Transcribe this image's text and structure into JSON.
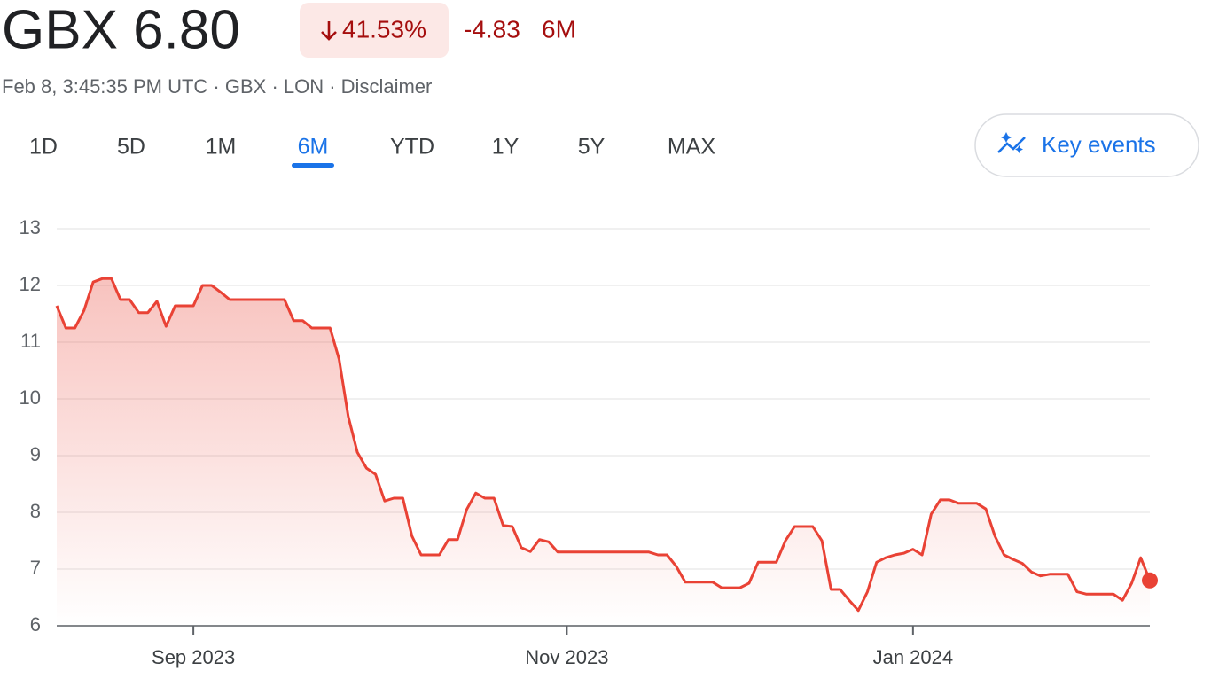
{
  "header": {
    "price": "GBX 6.80",
    "change_percent": "41.53%",
    "change": "-4.83",
    "period": "6M",
    "subtitle": "Feb 8, 3:45:35 PM UTC · GBX · LON · Disclaimer"
  },
  "tabs": [
    "1D",
    "5D",
    "1M",
    "6M",
    "YTD",
    "1Y",
    "5Y",
    "MAX"
  ],
  "selected_tab": "6M",
  "key_events": "Key events",
  "chart_data": {
    "type": "line",
    "categories": [
      null,
      null,
      null,
      null,
      null,
      null,
      null,
      null,
      null,
      null,
      null,
      null,
      null,
      null,
      null,
      "Sep 2023",
      null,
      null,
      null,
      null,
      null,
      null,
      null,
      null,
      null,
      null,
      null,
      null,
      null,
      null,
      null,
      null,
      null,
      null,
      null,
      null,
      null,
      null,
      null,
      null,
      null,
      null,
      null,
      null,
      null,
      null,
      null,
      null,
      null,
      null,
      null,
      null,
      null,
      null,
      null,
      null,
      "Nov 2023",
      null,
      null,
      null,
      null,
      null,
      null,
      null,
      null,
      null,
      null,
      null,
      null,
      null,
      null,
      null,
      null,
      null,
      null,
      null,
      null,
      null,
      null,
      null,
      null,
      null,
      null,
      null,
      null,
      null,
      null,
      null,
      null,
      null,
      null,
      null,
      null,
      null,
      "Jan 2024",
      null,
      null,
      null,
      null,
      null,
      null,
      null,
      null,
      null,
      null,
      null,
      null,
      null,
      null,
      null,
      null,
      null,
      null,
      null,
      null,
      null,
      null,
      null,
      null,
      null,
      null
    ],
    "series": [
      {
        "name": "GBX",
        "color": "#e94235",
        "values": [
          11.64,
          11.25,
          11.25,
          11.56,
          12.06,
          12.12,
          12.12,
          11.75,
          11.75,
          11.52,
          11.52,
          11.72,
          11.28,
          11.64,
          11.64,
          11.64,
          12.0,
          12.0,
          11.88,
          11.75,
          11.75,
          11.75,
          11.75,
          11.75,
          11.75,
          11.75,
          11.38,
          11.38,
          11.25,
          11.25,
          11.25,
          10.7,
          9.69,
          9.06,
          8.78,
          8.67,
          8.2,
          8.25,
          8.25,
          7.58,
          7.25,
          7.25,
          7.25,
          7.52,
          7.52,
          8.05,
          8.34,
          8.25,
          8.25,
          7.77,
          7.75,
          7.38,
          7.31,
          7.52,
          7.48,
          7.3,
          7.3,
          7.3,
          7.3,
          7.3,
          7.3,
          7.3,
          7.3,
          7.3,
          7.3,
          7.3,
          7.25,
          7.25,
          7.05,
          6.77,
          6.77,
          6.77,
          6.77,
          6.67,
          6.67,
          6.67,
          6.75,
          7.12,
          7.12,
          7.12,
          7.5,
          7.75,
          7.75,
          7.75,
          7.5,
          6.64,
          6.64,
          6.45,
          6.27,
          6.6,
          7.12,
          7.2,
          7.25,
          7.28,
          7.35,
          7.25,
          7.97,
          8.22,
          8.22,
          8.16,
          8.16,
          8.16,
          8.06,
          7.58,
          7.25,
          7.17,
          7.1,
          6.95,
          6.88,
          6.91,
          6.91,
          6.91,
          6.6,
          6.56,
          6.56,
          6.56,
          6.56,
          6.45,
          6.75,
          7.2,
          6.8
        ]
      }
    ],
    "ylim": [
      6,
      13
    ],
    "yticks": [
      6,
      7,
      8,
      9,
      10,
      11,
      12,
      13
    ],
    "grid": true
  }
}
